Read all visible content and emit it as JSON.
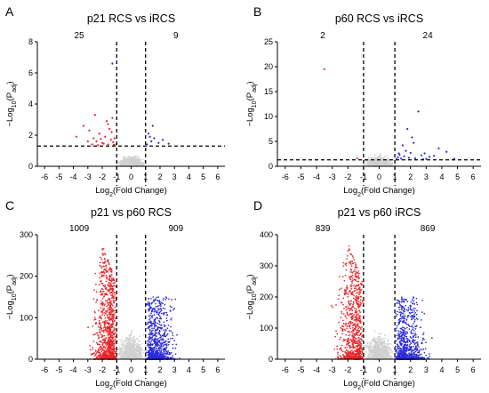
{
  "chart_data": [
    {
      "type": "scatter",
      "panel_letter": "A",
      "title": "p21 RCS vs iRCS",
      "xlabel": "Log2(Fold Change)",
      "ylabel": "-Log10(Padj)",
      "xlim": [
        -6.5,
        6.5
      ],
      "ylim": [
        0,
        8
      ],
      "xticks": [
        -6,
        -5,
        -4,
        -3,
        -2,
        -1,
        0,
        1,
        2,
        3,
        4,
        5,
        6
      ],
      "yticks": [
        0,
        2,
        4,
        6,
        8
      ],
      "fc_threshold": 1,
      "p_threshold_line": 1.3,
      "down_count": "25",
      "up_count": "9",
      "series": [
        {
          "color": "#e8262a",
          "points": [
            [
              -3.3,
              2.6
            ],
            [
              -2.9,
              2.3
            ],
            [
              -2.6,
              1.8
            ],
            [
              -2.4,
              1.6
            ],
            [
              -2.2,
              2.1
            ],
            [
              -2.0,
              1.5
            ],
            [
              -1.8,
              1.9
            ],
            [
              -1.6,
              1.4
            ],
            [
              -1.5,
              2.4
            ],
            [
              -1.4,
              1.7
            ],
            [
              -1.3,
              3.1
            ],
            [
              -3.8,
              1.9
            ],
            [
              -2.7,
              1.4
            ],
            [
              -2.3,
              1.35
            ],
            [
              -1.9,
              1.45
            ],
            [
              -1.7,
              2.9
            ],
            [
              -1.25,
              1.55
            ],
            [
              -1.15,
              1.8
            ],
            [
              -3.0,
              1.6
            ],
            [
              -2.1,
              1.75
            ],
            [
              -1.35,
              2.2
            ],
            [
              -1.05,
              1.4
            ],
            [
              -2.5,
              3.3
            ],
            [
              -1.6,
              2.7
            ],
            [
              -1.2,
              1.38
            ]
          ]
        },
        {
          "color": "#2b2bd9",
          "points": [
            [
              1.2,
              2.1
            ],
            [
              1.4,
              1.6
            ],
            [
              1.6,
              1.8
            ],
            [
              1.9,
              1.5
            ],
            [
              2.2,
              1.7
            ],
            [
              1.1,
              1.4
            ],
            [
              2.6,
              1.45
            ],
            [
              1.5,
              2.6
            ],
            [
              1.3,
              1.9
            ]
          ]
        },
        {
          "color": "#d0d0d0",
          "points": "background"
        }
      ],
      "extra_points": [
        [
          -1.3,
          6.6
        ],
        [
          1.0,
          4.3
        ]
      ]
    },
    {
      "type": "scatter",
      "panel_letter": "B",
      "title": "p60 RCS vs iRCS",
      "xlabel": "Log2(Fold Change)",
      "ylabel": "-Log10(Padj)",
      "xlim": [
        -6.5,
        6.5
      ],
      "ylim": [
        0,
        25
      ],
      "xticks": [
        -6,
        -5,
        -4,
        -3,
        -2,
        -1,
        0,
        1,
        2,
        3,
        4,
        5,
        6
      ],
      "yticks": [
        0,
        5,
        10,
        15,
        20,
        25
      ],
      "fc_threshold": 1,
      "p_threshold_line": 1.3,
      "down_count": "2",
      "up_count": "24",
      "series": [
        {
          "color": "#e8262a",
          "points": [
            [
              -3.5,
              19.5
            ],
            [
              -1.4,
              1.6
            ]
          ]
        },
        {
          "color": "#2b2bd9",
          "points": [
            [
              2.5,
              11.0
            ],
            [
              1.8,
              7.5
            ],
            [
              2.1,
              5.8
            ],
            [
              1.5,
              4.2
            ],
            [
              3.8,
              3.6
            ],
            [
              4.3,
              2.9
            ],
            [
              2.9,
              2.6
            ],
            [
              1.3,
              2.3
            ],
            [
              1.6,
              2.0
            ],
            [
              3.2,
              1.9
            ],
            [
              2.7,
              2.2
            ],
            [
              1.2,
              1.8
            ],
            [
              1.9,
              1.7
            ],
            [
              2.3,
              1.6
            ],
            [
              4.8,
              1.5
            ],
            [
              1.1,
              1.45
            ],
            [
              1.7,
              3.1
            ],
            [
              2.0,
              2.7
            ],
            [
              3.5,
              2.1
            ],
            [
              1.4,
              1.55
            ],
            [
              2.8,
              1.4
            ],
            [
              1.25,
              2.6
            ],
            [
              3.0,
              1.5
            ],
            [
              2.2,
              4.7
            ]
          ]
        },
        {
          "color": "#d0d0d0",
          "points": "background"
        }
      ]
    },
    {
      "type": "scatter",
      "panel_letter": "C",
      "title": "p21 vs p60 RCS",
      "xlabel": "Log2(Fold Change)",
      "ylabel": "-Log10(Padj)",
      "xlim": [
        -6.5,
        6.5
      ],
      "ylim": [
        0,
        300
      ],
      "xticks": [
        -6,
        -5,
        -4,
        -3,
        -2,
        -1,
        0,
        1,
        2,
        3,
        4,
        5,
        6
      ],
      "yticks": [
        0,
        100,
        200,
        300
      ],
      "fc_threshold": 1,
      "down_count": "1009",
      "up_count": "909",
      "series": [
        {
          "color": "#e8262a",
          "points": "dense-left"
        },
        {
          "color": "#2b2bd9",
          "points": "dense-right"
        },
        {
          "color": "#d0d0d0",
          "points": "background"
        }
      ]
    },
    {
      "type": "scatter",
      "panel_letter": "D",
      "title": "p21 vs p60 iRCS",
      "xlabel": "Log2(Fold Change)",
      "ylabel": "-Log10(Padj)",
      "xlim": [
        -6.5,
        6.5
      ],
      "ylim": [
        0,
        400
      ],
      "xticks": [
        -6,
        -5,
        -4,
        -3,
        -2,
        -1,
        0,
        1,
        2,
        3,
        4,
        5,
        6
      ],
      "yticks": [
        0,
        100,
        200,
        300,
        400
      ],
      "fc_threshold": 1,
      "down_count": "839",
      "up_count": "869",
      "series": [
        {
          "color": "#e8262a",
          "points": "dense-left"
        },
        {
          "color": "#2b2bd9",
          "points": "dense-right"
        },
        {
          "color": "#d0d0d0",
          "points": "background"
        }
      ]
    }
  ]
}
